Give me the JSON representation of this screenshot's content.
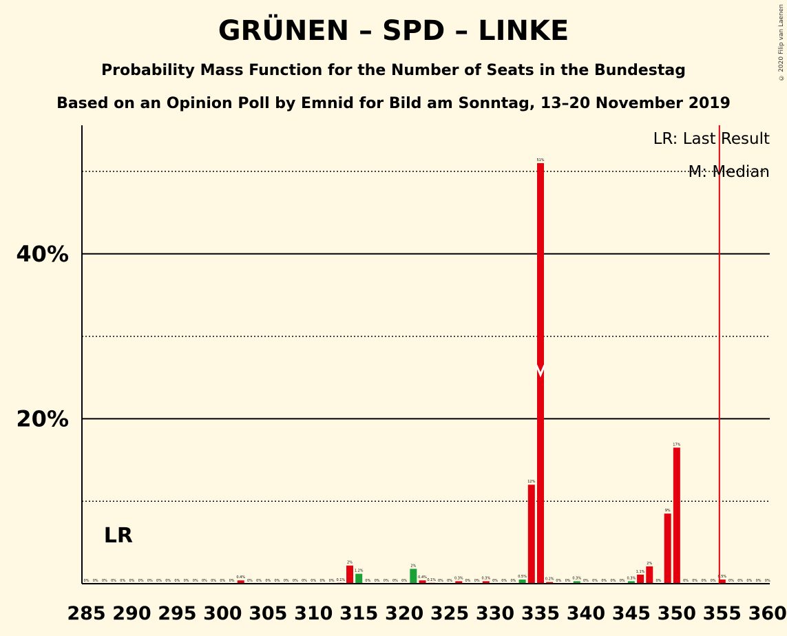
{
  "chart_data": {
    "type": "bar",
    "title": "GRÜNEN – SPD – LINKE",
    "subtitle": "Probability Mass Function for the Number of Seats in the Bundestag",
    "subtitle2": "Based on an Opinion Poll by Emnid for Bild am Sonntag, 13–20 November 2019",
    "copyright": "© 2020 Filip van Laenen",
    "legend": {
      "lr": "LR: Last Result",
      "m": "M: Median",
      "placement": "top-right"
    },
    "lr_label": "LR",
    "median_marker": "M",
    "xlim": [
      285,
      360
    ],
    "ylim": [
      0,
      55
    ],
    "x_ticks": [
      285,
      290,
      295,
      300,
      305,
      310,
      315,
      320,
      325,
      330,
      335,
      340,
      345,
      350,
      355,
      360
    ],
    "y_ticks": [
      {
        "value": 20,
        "label": "20%"
      },
      {
        "value": 40,
        "label": "40%"
      }
    ],
    "major_gridlines": [
      20,
      40
    ],
    "minor_gridlines": [
      10,
      30,
      50
    ],
    "last_result": 287,
    "median": 335,
    "majority_line": 355,
    "colors": {
      "bar": "#E3000F",
      "bar_alt": "#1AA037",
      "majority_line": "#E3000F",
      "background": "#FFF8E3"
    },
    "bars": [
      {
        "x": 285,
        "value": 0,
        "label": "0%",
        "color": "#E3000F"
      },
      {
        "x": 286,
        "value": 0,
        "label": "0%",
        "color": "#E3000F"
      },
      {
        "x": 287,
        "value": 0,
        "label": "0%",
        "color": "#E3000F"
      },
      {
        "x": 288,
        "value": 0,
        "label": "0%",
        "color": "#E3000F"
      },
      {
        "x": 289,
        "value": 0,
        "label": "0%",
        "color": "#E3000F"
      },
      {
        "x": 290,
        "value": 0,
        "label": "0%",
        "color": "#E3000F"
      },
      {
        "x": 291,
        "value": 0,
        "label": "0%",
        "color": "#E3000F"
      },
      {
        "x": 292,
        "value": 0,
        "label": "0%",
        "color": "#E3000F"
      },
      {
        "x": 293,
        "value": 0,
        "label": "0%",
        "color": "#E3000F"
      },
      {
        "x": 294,
        "value": 0,
        "label": "0%",
        "color": "#E3000F"
      },
      {
        "x": 295,
        "value": 0,
        "label": "0%",
        "color": "#E3000F"
      },
      {
        "x": 296,
        "value": 0,
        "label": "0%",
        "color": "#E3000F"
      },
      {
        "x": 297,
        "value": 0,
        "label": "0%",
        "color": "#E3000F"
      },
      {
        "x": 298,
        "value": 0,
        "label": "0%",
        "color": "#E3000F"
      },
      {
        "x": 299,
        "value": 0,
        "label": "0%",
        "color": "#E3000F"
      },
      {
        "x": 300,
        "value": 0,
        "label": "0%",
        "color": "#E3000F"
      },
      {
        "x": 301,
        "value": 0,
        "label": "0%",
        "color": "#E3000F"
      },
      {
        "x": 302,
        "value": 0.4,
        "label": "0.4%",
        "color": "#E3000F"
      },
      {
        "x": 303,
        "value": 0,
        "label": "0%",
        "color": "#E3000F"
      },
      {
        "x": 304,
        "value": 0,
        "label": "0%",
        "color": "#E3000F"
      },
      {
        "x": 305,
        "value": 0,
        "label": "0%",
        "color": "#E3000F"
      },
      {
        "x": 306,
        "value": 0,
        "label": "0%",
        "color": "#E3000F"
      },
      {
        "x": 307,
        "value": 0,
        "label": "0%",
        "color": "#E3000F"
      },
      {
        "x": 308,
        "value": 0,
        "label": "0%",
        "color": "#E3000F"
      },
      {
        "x": 309,
        "value": 0,
        "label": "0%",
        "color": "#E3000F"
      },
      {
        "x": 310,
        "value": 0,
        "label": "0%",
        "color": "#E3000F"
      },
      {
        "x": 311,
        "value": 0,
        "label": "0%",
        "color": "#E3000F"
      },
      {
        "x": 312,
        "value": 0,
        "label": "0%",
        "color": "#E3000F"
      },
      {
        "x": 313,
        "value": 0.1,
        "label": "0.1%",
        "color": "#E3000F"
      },
      {
        "x": 314,
        "value": 2.2,
        "label": "2%",
        "color": "#E3000F"
      },
      {
        "x": 315,
        "value": 1.2,
        "label": "1.2%",
        "color": "#1AA037"
      },
      {
        "x": 316,
        "value": 0,
        "label": "0%",
        "color": "#E3000F"
      },
      {
        "x": 317,
        "value": 0,
        "label": "0%",
        "color": "#E3000F"
      },
      {
        "x": 318,
        "value": 0,
        "label": "0%",
        "color": "#E3000F"
      },
      {
        "x": 319,
        "value": 0,
        "label": "0%",
        "color": "#E3000F"
      },
      {
        "x": 320,
        "value": 0,
        "label": "0%",
        "color": "#E3000F"
      },
      {
        "x": 321,
        "value": 1.8,
        "label": "2%",
        "color": "#1AA037"
      },
      {
        "x": 322,
        "value": 0.4,
        "label": "0.4%",
        "color": "#E3000F"
      },
      {
        "x": 323,
        "value": 0.1,
        "label": "0.1%",
        "color": "#E3000F"
      },
      {
        "x": 324,
        "value": 0,
        "label": "0%",
        "color": "#E3000F"
      },
      {
        "x": 325,
        "value": 0,
        "label": "0%",
        "color": "#E3000F"
      },
      {
        "x": 326,
        "value": 0.3,
        "label": "0.3%",
        "color": "#E3000F"
      },
      {
        "x": 327,
        "value": 0,
        "label": "0%",
        "color": "#E3000F"
      },
      {
        "x": 328,
        "value": 0,
        "label": "0%",
        "color": "#E3000F"
      },
      {
        "x": 329,
        "value": 0.3,
        "label": "0.3%",
        "color": "#E3000F"
      },
      {
        "x": 330,
        "value": 0,
        "label": "0%",
        "color": "#E3000F"
      },
      {
        "x": 331,
        "value": 0,
        "label": "0%",
        "color": "#E3000F"
      },
      {
        "x": 332,
        "value": 0,
        "label": "0%",
        "color": "#E3000F"
      },
      {
        "x": 333,
        "value": 0.5,
        "label": "0.5%",
        "color": "#1AA037"
      },
      {
        "x": 334,
        "value": 12,
        "label": "12%",
        "color": "#E3000F"
      },
      {
        "x": 335,
        "value": 51,
        "label": "51%",
        "color": "#E3000F"
      },
      {
        "x": 336,
        "value": 0.2,
        "label": "0.2%",
        "color": "#E3000F"
      },
      {
        "x": 337,
        "value": 0,
        "label": "0%",
        "color": "#E3000F"
      },
      {
        "x": 338,
        "value": 0,
        "label": "0%",
        "color": "#E3000F"
      },
      {
        "x": 339,
        "value": 0.3,
        "label": "0.3%",
        "color": "#1AA037"
      },
      {
        "x": 340,
        "value": 0,
        "label": "0%",
        "color": "#E3000F"
      },
      {
        "x": 341,
        "value": 0,
        "label": "0%",
        "color": "#E3000F"
      },
      {
        "x": 342,
        "value": 0,
        "label": "0%",
        "color": "#E3000F"
      },
      {
        "x": 343,
        "value": 0,
        "label": "0%",
        "color": "#E3000F"
      },
      {
        "x": 344,
        "value": 0,
        "label": "0%",
        "color": "#E3000F"
      },
      {
        "x": 345,
        "value": 0.3,
        "label": "0.3%",
        "color": "#1AA037"
      },
      {
        "x": 346,
        "value": 1.1,
        "label": "1.1%",
        "color": "#E3000F"
      },
      {
        "x": 347,
        "value": 2.1,
        "label": "2%",
        "color": "#E3000F"
      },
      {
        "x": 348,
        "value": 0,
        "label": "0%",
        "color": "#E3000F"
      },
      {
        "x": 349,
        "value": 8.5,
        "label": "9%",
        "color": "#E3000F"
      },
      {
        "x": 350,
        "value": 16.5,
        "label": "17%",
        "color": "#E3000F"
      },
      {
        "x": 351,
        "value": 0,
        "label": "0%",
        "color": "#E3000F"
      },
      {
        "x": 352,
        "value": 0,
        "label": "0%",
        "color": "#E3000F"
      },
      {
        "x": 353,
        "value": 0,
        "label": "0%",
        "color": "#E3000F"
      },
      {
        "x": 354,
        "value": 0,
        "label": "0%",
        "color": "#E3000F"
      },
      {
        "x": 355,
        "value": 0.5,
        "label": "0.5%",
        "color": "#E3000F"
      },
      {
        "x": 356,
        "value": 0,
        "label": "0%",
        "color": "#E3000F"
      },
      {
        "x": 357,
        "value": 0,
        "label": "0%",
        "color": "#E3000F"
      },
      {
        "x": 358,
        "value": 0,
        "label": "0%",
        "color": "#E3000F"
      },
      {
        "x": 359,
        "value": 0,
        "label": "0%",
        "color": "#E3000F"
      },
      {
        "x": 360,
        "value": 0,
        "label": "0%",
        "color": "#E3000F"
      }
    ]
  }
}
